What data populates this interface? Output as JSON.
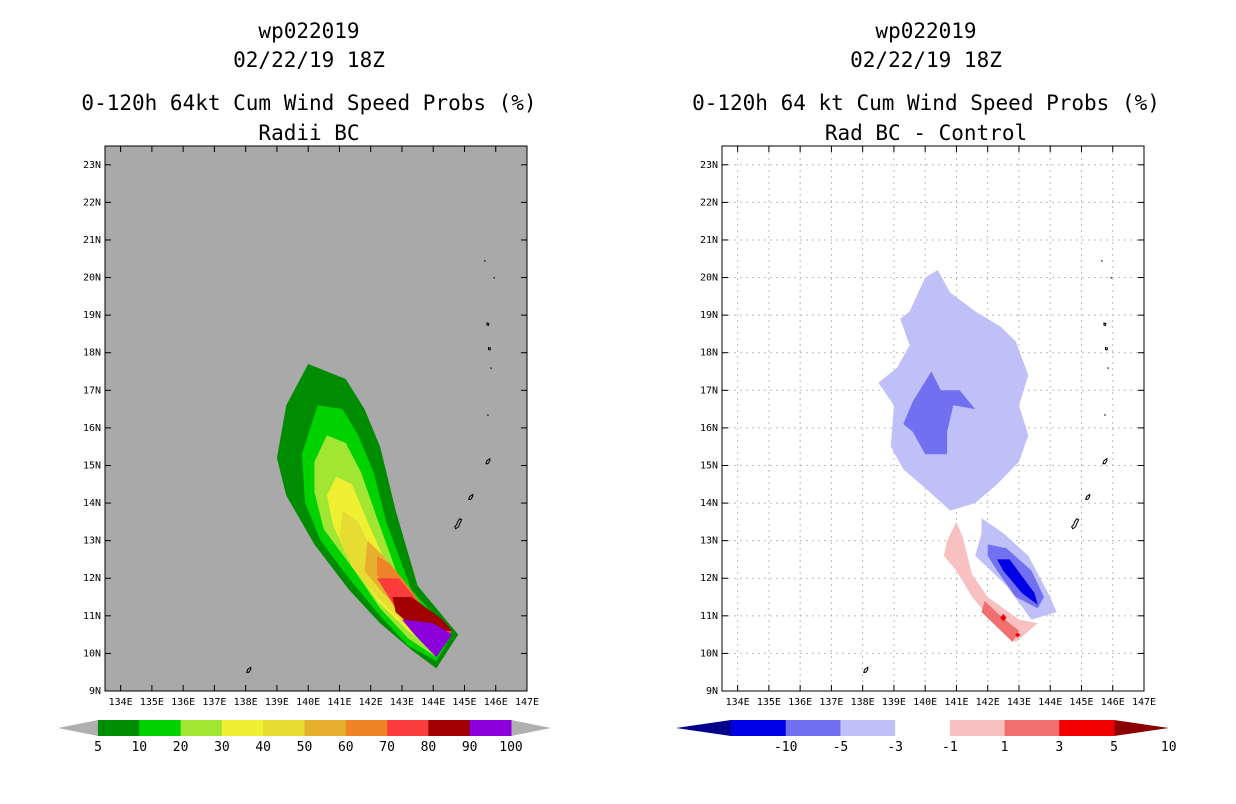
{
  "chart_data": [
    {
      "type": "heatmap",
      "storm_id": "wp022019",
      "datetime": "02/22/19 18Z",
      "title": "0-120h 64kt Cum Wind Speed Probs (%)",
      "subtitle": "Radii BC",
      "x_ticks": [
        "134E",
        "135E",
        "136E",
        "137E",
        "138E",
        "139E",
        "140E",
        "141E",
        "142E",
        "143E",
        "144E",
        "145E",
        "146E",
        "147E"
      ],
      "y_ticks": [
        "9N",
        "10N",
        "11N",
        "12N",
        "13N",
        "14N",
        "15N",
        "16N",
        "17N",
        "18N",
        "19N",
        "20N",
        "21N",
        "22N",
        "23N"
      ],
      "xlim": [
        133.5,
        147.0
      ],
      "ylim": [
        9.0,
        23.5
      ],
      "background_color": "#a9a9a9",
      "grid": false,
      "colorbar": {
        "labels": [
          "5",
          "10",
          "20",
          "30",
          "40",
          "50",
          "60",
          "70",
          "80",
          "90",
          "100"
        ],
        "colors": [
          "#008c00",
          "#00d200",
          "#a0e632",
          "#f0f032",
          "#e6dc32",
          "#e6af2d",
          "#f08228",
          "#fa3c3c",
          "#a00000",
          "#8c00dc"
        ],
        "end_color": "#b0b0b0"
      },
      "contours": [
        {
          "level": 5,
          "color": "#008c00",
          "points": [
            [
              140.0,
              17.7
            ],
            [
              141.2,
              17.3
            ],
            [
              141.8,
              16.5
            ],
            [
              142.3,
              15.5
            ],
            [
              142.8,
              13.8
            ],
            [
              143.5,
              11.8
            ],
            [
              144.8,
              10.5
            ],
            [
              144.1,
              9.6
            ],
            [
              143.3,
              10.1
            ],
            [
              142.3,
              10.8
            ],
            [
              141.3,
              11.7
            ],
            [
              140.2,
              12.9
            ],
            [
              139.3,
              14.2
            ],
            [
              139.0,
              15.2
            ],
            [
              139.3,
              16.6
            ]
          ]
        },
        {
          "level": 10,
          "color": "#00d200",
          "points": [
            [
              140.3,
              16.6
            ],
            [
              141.1,
              16.5
            ],
            [
              141.6,
              15.8
            ],
            [
              142.1,
              14.8
            ],
            [
              142.5,
              13.5
            ],
            [
              143.3,
              11.7
            ],
            [
              144.6,
              10.5
            ],
            [
              144.1,
              9.8
            ],
            [
              143.2,
              10.2
            ],
            [
              142.3,
              11.0
            ],
            [
              141.3,
              12.0
            ],
            [
              140.4,
              13.0
            ],
            [
              139.9,
              14.0
            ],
            [
              139.8,
              15.3
            ]
          ]
        },
        {
          "level": 20,
          "color": "#a0e632",
          "points": [
            [
              140.6,
              15.8
            ],
            [
              141.2,
              15.6
            ],
            [
              141.7,
              14.8
            ],
            [
              142.2,
              13.6
            ],
            [
              142.9,
              12.0
            ],
            [
              144.4,
              10.5
            ],
            [
              144.1,
              9.9
            ],
            [
              143.2,
              10.4
            ],
            [
              142.3,
              11.2
            ],
            [
              141.4,
              12.3
            ],
            [
              140.5,
              13.3
            ],
            [
              140.2,
              14.3
            ],
            [
              140.2,
              15.1
            ]
          ]
        },
        {
          "level": 30,
          "color": "#f0f032",
          "points": [
            [
              140.9,
              14.7
            ],
            [
              141.4,
              14.5
            ],
            [
              141.9,
              13.5
            ],
            [
              142.6,
              12.2
            ],
            [
              144.3,
              10.5
            ],
            [
              144.1,
              10.0
            ],
            [
              143.2,
              10.6
            ],
            [
              142.2,
              11.4
            ],
            [
              141.3,
              12.5
            ],
            [
              140.8,
              13.4
            ],
            [
              140.6,
              14.2
            ]
          ]
        },
        {
          "level": 40,
          "color": "#e6dc32",
          "points": [
            [
              141.1,
              13.8
            ],
            [
              141.6,
              13.5
            ],
            [
              142.0,
              12.8
            ],
            [
              142.7,
              12.1
            ],
            [
              144.2,
              10.5
            ],
            [
              144.1,
              10.1
            ],
            [
              143.2,
              10.7
            ],
            [
              142.2,
              11.5
            ],
            [
              141.4,
              12.3
            ],
            [
              141.0,
              13.1
            ]
          ]
        },
        {
          "level": 50,
          "color": "#e6af2d",
          "points": [
            [
              141.9,
              13.0
            ],
            [
              142.4,
              12.6
            ],
            [
              143.0,
              11.9
            ],
            [
              144.2,
              10.5
            ],
            [
              144.1,
              10.2
            ],
            [
              143.3,
              10.9
            ],
            [
              142.4,
              11.6
            ],
            [
              141.8,
              12.2
            ]
          ]
        },
        {
          "level": 60,
          "color": "#f08228",
          "points": [
            [
              142.2,
              12.6
            ],
            [
              142.6,
              12.4
            ],
            [
              143.2,
              11.8
            ],
            [
              144.2,
              10.6
            ],
            [
              144.1,
              10.2
            ],
            [
              143.4,
              10.9
            ],
            [
              142.6,
              11.7
            ],
            [
              142.2,
              12.1
            ]
          ]
        },
        {
          "level": 70,
          "color": "#fa3c3c",
          "points": [
            [
              142.2,
              12.0
            ],
            [
              142.9,
              12.0
            ],
            [
              143.5,
              11.4
            ],
            [
              144.6,
              10.6
            ],
            [
              144.1,
              10.1
            ],
            [
              143.5,
              10.6
            ],
            [
              142.8,
              11.2
            ]
          ]
        },
        {
          "level": 80,
          "color": "#a00000",
          "points": [
            [
              142.7,
              11.5
            ],
            [
              143.3,
              11.5
            ],
            [
              144.3,
              10.9
            ],
            [
              144.6,
              10.6
            ],
            [
              143.9,
              10.6
            ],
            [
              143.2,
              10.8
            ],
            [
              142.8,
              11.1
            ]
          ]
        },
        {
          "level": 90,
          "color": "#8c00dc",
          "points": [
            [
              143.0,
              10.9
            ],
            [
              144.0,
              10.8
            ],
            [
              144.6,
              10.5
            ],
            [
              144.1,
              9.9
            ],
            [
              143.4,
              10.5
            ]
          ]
        }
      ]
    },
    {
      "type": "heatmap",
      "storm_id": "wp022019",
      "datetime": "02/22/19 18Z",
      "title": "0-120h 64 kt Cum Wind Speed Probs (%)",
      "subtitle": "Rad BC - Control",
      "x_ticks": [
        "134E",
        "135E",
        "136E",
        "137E",
        "138E",
        "139E",
        "140E",
        "141E",
        "142E",
        "143E",
        "144E",
        "145E",
        "146E",
        "147E"
      ],
      "y_ticks": [
        "9N",
        "10N",
        "11N",
        "12N",
        "13N",
        "14N",
        "15N",
        "16N",
        "17N",
        "18N",
        "19N",
        "20N",
        "21N",
        "22N",
        "23N"
      ],
      "xlim": [
        133.5,
        147.0
      ],
      "ylim": [
        9.0,
        23.5
      ],
      "background_color": "#ffffff",
      "grid": true,
      "colorbar": {
        "labels": [
          "-10",
          "-5",
          "-3",
          "-1",
          "1",
          "3",
          "5",
          "10"
        ],
        "colors": [
          "#0000e6",
          "#7070f0",
          "#c0c0f8",
          "#ffffff",
          "#f8c0c0",
          "#f07070",
          "#f00000"
        ],
        "low_end_color": "#00008c",
        "high_end_color": "#8c0000"
      },
      "contours": [
        {
          "level": -1,
          "color": "#c0c0f8",
          "points": [
            [
              139.5,
              19.1
            ],
            [
              140.0,
              20.0
            ],
            [
              140.4,
              20.2
            ],
            [
              140.8,
              19.6
            ],
            [
              141.6,
              19.1
            ],
            [
              142.4,
              18.7
            ],
            [
              142.9,
              18.3
            ],
            [
              143.3,
              17.4
            ],
            [
              143.0,
              16.6
            ],
            [
              143.3,
              15.8
            ],
            [
              143.0,
              15.1
            ],
            [
              142.3,
              14.5
            ],
            [
              141.6,
              14.0
            ],
            [
              140.8,
              13.8
            ],
            [
              140.0,
              14.4
            ],
            [
              139.3,
              14.9
            ],
            [
              138.9,
              15.5
            ],
            [
              139.0,
              16.6
            ],
            [
              138.5,
              17.2
            ],
            [
              139.1,
              17.6
            ],
            [
              139.5,
              18.2
            ],
            [
              139.2,
              18.9
            ]
          ]
        },
        {
          "level": -3,
          "color": "#7070f0",
          "points": [
            [
              140.2,
              17.5
            ],
            [
              140.5,
              17.0
            ],
            [
              141.1,
              17.0
            ],
            [
              141.6,
              16.5
            ],
            [
              140.9,
              16.6
            ],
            [
              140.7,
              15.9
            ],
            [
              140.7,
              15.3
            ],
            [
              140.0,
              15.3
            ],
            [
              139.6,
              15.9
            ],
            [
              139.3,
              16.1
            ],
            [
              139.6,
              16.7
            ]
          ]
        },
        {
          "level": -1,
          "color": "#c0c0f8",
          "points": [
            [
              141.8,
              13.6
            ],
            [
              142.5,
              13.2
            ],
            [
              143.3,
              12.6
            ],
            [
              144.0,
              11.5
            ],
            [
              144.2,
              11.1
            ],
            [
              143.4,
              10.9
            ],
            [
              142.6,
              11.8
            ],
            [
              141.6,
              12.6
            ],
            [
              141.8,
              13.2
            ]
          ]
        },
        {
          "level": -3,
          "color": "#7070f0",
          "points": [
            [
              142.0,
              12.9
            ],
            [
              142.6,
              12.8
            ],
            [
              143.4,
              12.2
            ],
            [
              143.8,
              11.5
            ],
            [
              143.6,
              11.2
            ],
            [
              142.9,
              11.5
            ],
            [
              142.3,
              12.2
            ],
            [
              142.0,
              12.6
            ]
          ]
        },
        {
          "level": -5,
          "color": "#0000e6",
          "points": [
            [
              142.3,
              12.5
            ],
            [
              142.7,
              12.5
            ],
            [
              143.5,
              11.6
            ],
            [
              143.6,
              11.3
            ],
            [
              143.1,
              11.6
            ],
            [
              142.5,
              12.2
            ]
          ]
        },
        {
          "level": 1,
          "color": "#f8c0c0",
          "points": [
            [
              140.7,
              13.0
            ],
            [
              141.0,
              13.5
            ],
            [
              141.2,
              13.1
            ],
            [
              141.5,
              12.1
            ],
            [
              142.0,
              11.5
            ],
            [
              143.0,
              10.9
            ],
            [
              143.6,
              10.8
            ],
            [
              142.9,
              10.3
            ],
            [
              142.2,
              10.8
            ],
            [
              141.5,
              11.5
            ],
            [
              141.0,
              12.2
            ],
            [
              140.6,
              12.6
            ]
          ]
        },
        {
          "level": 3,
          "color": "#f07070",
          "points": [
            [
              141.9,
              11.4
            ],
            [
              142.4,
              11.0
            ],
            [
              143.0,
              10.6
            ],
            [
              142.8,
              10.3
            ],
            [
              142.3,
              10.7
            ],
            [
              141.8,
              11.1
            ]
          ]
        },
        {
          "level": 5,
          "color": "#f00000",
          "points": [
            [
              142.5,
              11.05
            ],
            [
              142.6,
              10.95
            ],
            [
              142.5,
              10.85
            ],
            [
              142.4,
              10.95
            ]
          ]
        },
        {
          "level": 5,
          "color": "#f00000",
          "points": [
            [
              142.95,
              10.55
            ],
            [
              143.05,
              10.5
            ],
            [
              142.95,
              10.42
            ],
            [
              142.88,
              10.5
            ]
          ]
        }
      ]
    }
  ],
  "islands": [
    {
      "lon": 145.65,
      "lat": 20.45,
      "shape": "dot"
    },
    {
      "lon": 145.95,
      "lat": 20.0,
      "shape": "dot"
    },
    {
      "lon": 145.75,
      "lat": 18.75,
      "shape": "blob"
    },
    {
      "lon": 145.8,
      "lat": 18.1,
      "shape": "blob"
    },
    {
      "lon": 145.85,
      "lat": 17.6,
      "shape": "dot"
    },
    {
      "lon": 145.75,
      "lat": 16.35,
      "shape": "dot"
    },
    {
      "lon": 145.75,
      "lat": 15.1,
      "shape": "island"
    },
    {
      "lon": 145.2,
      "lat": 14.15,
      "shape": "island"
    },
    {
      "lon": 144.75,
      "lat": 13.45,
      "shape": "guam"
    },
    {
      "lon": 138.1,
      "lat": 9.55,
      "shape": "island"
    }
  ]
}
